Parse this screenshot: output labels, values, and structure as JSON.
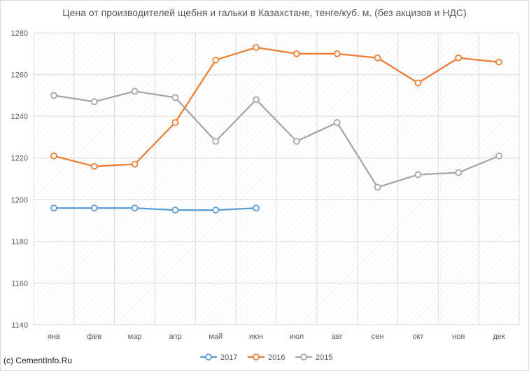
{
  "chart_data": {
    "type": "line",
    "title": "Цена от производителей щебня и гальки в Казахстане, тенге/куб. м. (без акцизов и НДС)",
    "categories": [
      "янв",
      "фев",
      "мар",
      "апр",
      "май",
      "июн",
      "июл",
      "авг",
      "сен",
      "окт",
      "ноя",
      "дек"
    ],
    "ylim": [
      1140,
      1280
    ],
    "yticks": [
      1140,
      1160,
      1180,
      1200,
      1220,
      1240,
      1260,
      1280
    ],
    "grid": true,
    "legend_position": "bottom",
    "series": [
      {
        "name": "2017",
        "color": "#5b9bd5",
        "values": [
          1196,
          1196,
          1196,
          1195,
          1195,
          1196,
          null,
          null,
          null,
          null,
          null,
          null
        ]
      },
      {
        "name": "2016",
        "color": "#ed7d31",
        "values": [
          1221,
          1216,
          1217,
          1237,
          1267,
          1273,
          1270,
          1270,
          1268,
          1256,
          1268,
          1266
        ]
      },
      {
        "name": "2015",
        "color": "#a5a5a5",
        "values": [
          1250,
          1247,
          1252,
          1249,
          1228,
          1248,
          1228,
          1237,
          1206,
          1212,
          1213,
          1221
        ]
      }
    ]
  },
  "source_text": "(c) CementInfo.Ru"
}
